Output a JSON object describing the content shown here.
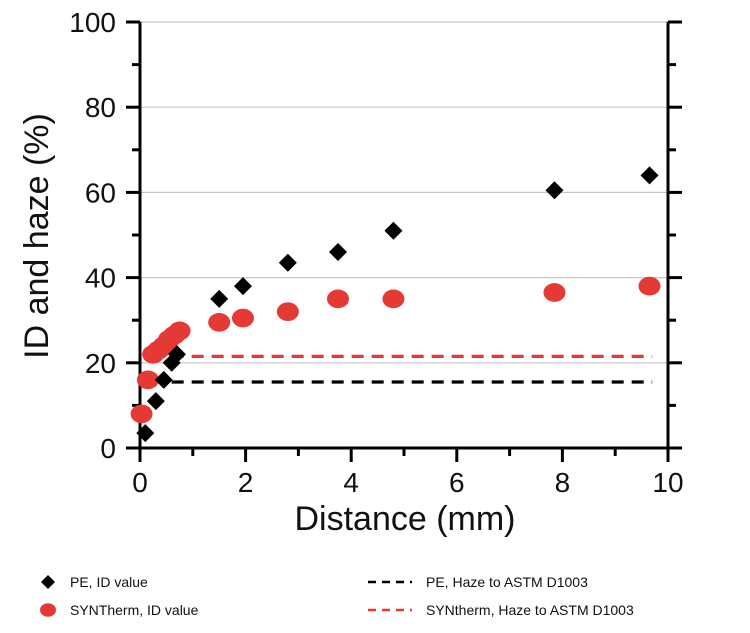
{
  "chart_data": {
    "type": "scatter",
    "title": "",
    "xlabel": "Distance (mm)",
    "ylabel": "ID and haze (%)",
    "xlim": [
      0,
      10
    ],
    "ylim": [
      0,
      100
    ],
    "x_ticks": [
      0,
      2,
      4,
      6,
      8,
      10
    ],
    "y_ticks": [
      0,
      20,
      40,
      60,
      80,
      100
    ],
    "x_tick_labels": [
      "0",
      "2",
      "4",
      "6",
      "8",
      "10"
    ],
    "y_tick_labels": [
      "0",
      "20",
      "40",
      "60",
      "80",
      "100"
    ],
    "grid": true,
    "legend_position": "bottom",
    "series": [
      {
        "name": "PE, ID value",
        "marker": "diamond",
        "color": "#000000",
        "points": [
          {
            "x": 0.1,
            "y": 3.5
          },
          {
            "x": 0.3,
            "y": 11
          },
          {
            "x": 0.45,
            "y": 16
          },
          {
            "x": 0.6,
            "y": 20
          },
          {
            "x": 0.7,
            "y": 22
          },
          {
            "x": 1.5,
            "y": 35
          },
          {
            "x": 1.95,
            "y": 38
          },
          {
            "x": 2.8,
            "y": 43.5
          },
          {
            "x": 3.75,
            "y": 46
          },
          {
            "x": 4.8,
            "y": 51
          },
          {
            "x": 7.85,
            "y": 60.5
          },
          {
            "x": 9.65,
            "y": 64
          }
        ]
      },
      {
        "name": "SYNTherm, ID value",
        "marker": "circle",
        "color": "#e53935",
        "points": [
          {
            "x": 0.03,
            "y": 8
          },
          {
            "x": 0.15,
            "y": 16
          },
          {
            "x": 0.25,
            "y": 22
          },
          {
            "x": 0.35,
            "y": 23
          },
          {
            "x": 0.45,
            "y": 24
          },
          {
            "x": 0.55,
            "y": 25.5
          },
          {
            "x": 0.65,
            "y": 26.5
          },
          {
            "x": 0.75,
            "y": 27.5
          },
          {
            "x": 1.5,
            "y": 29.5
          },
          {
            "x": 1.95,
            "y": 30.5
          },
          {
            "x": 2.8,
            "y": 32
          },
          {
            "x": 3.75,
            "y": 35
          },
          {
            "x": 4.8,
            "y": 35
          },
          {
            "x": 7.85,
            "y": 36.5
          },
          {
            "x": 9.65,
            "y": 38
          }
        ]
      }
    ],
    "reference_lines": [
      {
        "name": "PE, Haze to ASTM D1003",
        "y": 15.5,
        "x_start": 0.6,
        "x_end": 9.7,
        "color": "#000000",
        "style": "dashed"
      },
      {
        "name": "SYNtherm, Haze to ASTM D1003",
        "y": 21.5,
        "x_start": 0.6,
        "x_end": 9.7,
        "color": "#e53935",
        "style": "dashed"
      }
    ]
  }
}
